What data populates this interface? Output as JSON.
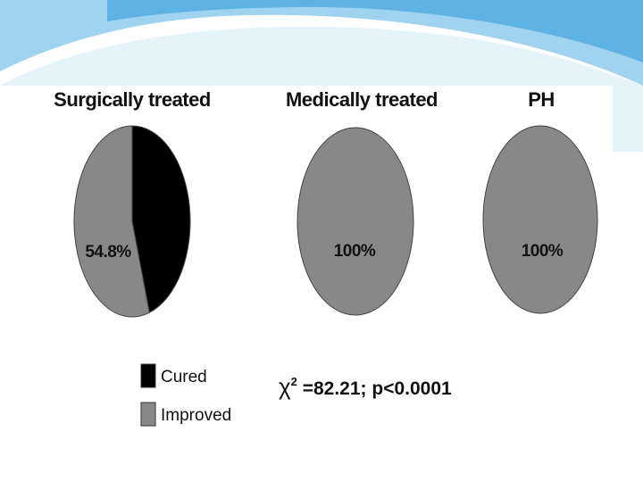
{
  "theme": {
    "wave_colors": [
      "#9fd3f0",
      "#5fb3e4",
      "#cfe9f8"
    ],
    "slice_colors": {
      "Cured": "#000000",
      "Improved": "#888888"
    }
  },
  "chart_data": [
    {
      "type": "pie",
      "title": "Surgically treated",
      "slices": [
        {
          "label": "Cured",
          "value": 45.2
        },
        {
          "label": "Improved",
          "value": 54.8
        }
      ],
      "annotations": [
        "54.8%"
      ]
    },
    {
      "type": "pie",
      "title": "Medically treated",
      "slices": [
        {
          "label": "Cured",
          "value": 0
        },
        {
          "label": "Improved",
          "value": 100
        }
      ],
      "annotations": [
        "100%"
      ]
    },
    {
      "type": "pie",
      "title": "PH",
      "slices": [
        {
          "label": "Cured",
          "value": 0
        },
        {
          "label": "Improved",
          "value": 100
        }
      ],
      "annotations": [
        "100%"
      ]
    }
  ],
  "legend": {
    "placement": "bottom-left",
    "items": [
      {
        "label": "Cured",
        "color": "#000000"
      },
      {
        "label": "Improved",
        "color": "#888888"
      }
    ]
  },
  "statistic": {
    "symbol": "χ",
    "superscript": "2",
    "text": " =82.21;  p<0.0001"
  }
}
